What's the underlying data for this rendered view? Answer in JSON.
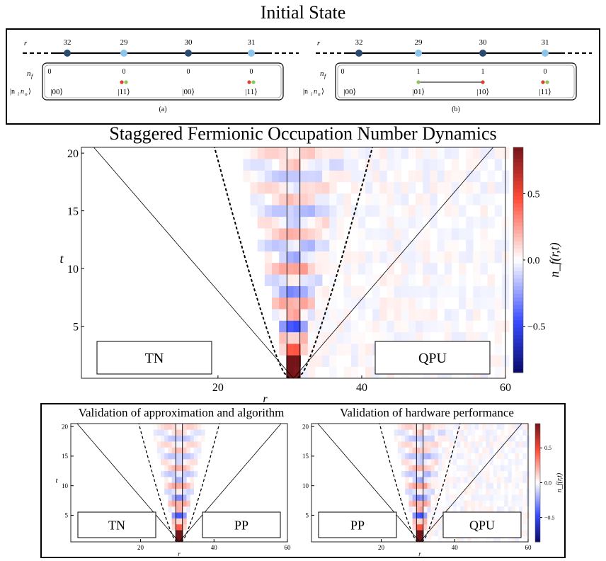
{
  "top_panel": {
    "title": "Initial State",
    "diagrams": [
      {
        "caption": "(a)",
        "row_labels": {
          "r": "r",
          "nf": "n",
          "nf_sub": "f",
          "ket": "|n",
          "ket_sub_i": "i",
          "ket_n": "n",
          "ket_sub_o": "o",
          "ket_close": "⟩"
        },
        "sites": [
          "32",
          "29",
          "30",
          "31"
        ],
        "site_colors": [
          "#2b4a6f",
          "#8cc4ec",
          "#2b4a6f",
          "#8cc4ec"
        ],
        "nf": [
          "0",
          "0",
          "0",
          "0"
        ],
        "kets": [
          "|00⟩",
          "|11⟩",
          "|00⟩",
          "|11⟩"
        ],
        "pairs": [
          1,
          3
        ],
        "link": null
      },
      {
        "caption": "(b)",
        "row_labels": {
          "r": "r",
          "nf": "n",
          "nf_sub": "f",
          "ket": "|n",
          "ket_sub_i": "i",
          "ket_n": "n",
          "ket_sub_o": "o",
          "ket_close": "⟩"
        },
        "sites": [
          "32",
          "29",
          "30",
          "31"
        ],
        "site_colors": [
          "#2b4a6f",
          "#8cc4ec",
          "#2b4a6f",
          "#8cc4ec"
        ],
        "nf": [
          "0",
          "1",
          "1",
          "0"
        ],
        "kets": [
          "|00⟩",
          "|01⟩",
          "|10⟩",
          "|11⟩"
        ],
        "pairs": [
          3
        ],
        "link": [
          1,
          2
        ]
      }
    ],
    "dot_colors": {
      "red": "#d9422e",
      "green": "#8cc35a"
    }
  },
  "chart_data": [
    {
      "type": "heatmap",
      "title": "Staggered Fermionic Occupation Number Dynamics",
      "xlabel": "r",
      "ylabel": "t",
      "xlim": [
        1,
        60
      ],
      "ylim": [
        0.5,
        20.5
      ],
      "xticks": [
        20,
        40,
        60
      ],
      "yticks": [
        5,
        10,
        15,
        20
      ],
      "colorbar": {
        "label": "n_f(r,t)",
        "ticks": [
          -0.5,
          0.0,
          0.5
        ],
        "tick_labels": [
          "−0.5",
          "0.0",
          "0.5"
        ],
        "range": [
          -0.85,
          0.85
        ]
      },
      "panel_labels": {
        "left": "TN",
        "right": "QPU"
      },
      "center_split": 30.5,
      "light_cone": {
        "apex_x": 30.5,
        "solid_slope": 0.72,
        "dashed_slope": 0.34,
        "dashed_curve": 1.6
      },
      "model": {
        "decay_time": 6,
        "period": 3.2,
        "spatial_period": 2.2,
        "left_noise": 0.0,
        "right_noise": 0.05,
        "amplitude": 0.85
      }
    },
    {
      "type": "heatmap",
      "title": "Validation of approximation and algorithm",
      "xlabel": "r",
      "ylabel": "t",
      "xlim": [
        1,
        60
      ],
      "ylim": [
        0.5,
        20.5
      ],
      "xticks": [
        20,
        40,
        60
      ],
      "yticks": [
        5,
        10,
        15,
        20
      ],
      "panel_labels": {
        "left": "TN",
        "right": "PP"
      },
      "center_split": 30.5,
      "light_cone": {
        "apex_x": 30.5,
        "solid_slope": 0.72,
        "dashed_slope": 0.34,
        "dashed_curve": 1.6
      },
      "model": {
        "decay_time": 6,
        "period": 3.2,
        "spatial_period": 2.2,
        "left_noise": 0.0,
        "right_noise": 0.0,
        "amplitude": 0.85
      }
    },
    {
      "type": "heatmap",
      "title": "Validation of hardware performance",
      "xlabel": "r",
      "ylabel": "t",
      "xlim": [
        1,
        60
      ],
      "ylim": [
        0.5,
        20.5
      ],
      "xticks": [
        20,
        40,
        60
      ],
      "yticks": [
        5,
        10,
        15,
        20
      ],
      "colorbar": {
        "label": "n_f(r,t)",
        "ticks": [
          -0.5,
          0.0,
          0.5
        ],
        "tick_labels": [
          "−0.5",
          "0.0",
          "0.5"
        ],
        "range": [
          -0.85,
          0.85
        ]
      },
      "panel_labels": {
        "left": "PP",
        "right": "QPU"
      },
      "center_split": 30.5,
      "light_cone": {
        "apex_x": 30.5,
        "solid_slope": 0.72,
        "dashed_slope": 0.34,
        "dashed_curve": 1.6
      },
      "model": {
        "decay_time": 6,
        "period": 3.2,
        "spatial_period": 2.2,
        "left_noise": 0.0,
        "right_noise": 0.05,
        "amplitude": 0.85
      }
    }
  ]
}
